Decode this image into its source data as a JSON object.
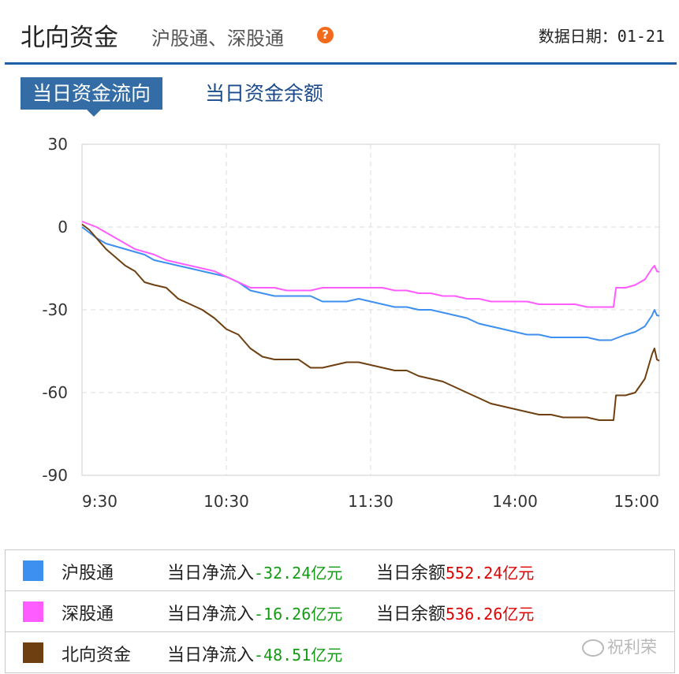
{
  "header": {
    "title": "北向资金",
    "subtitle": "沪股通、深股通",
    "help_icon": "question-icon",
    "date_label": "数据日期：",
    "date_value": "01-21",
    "accent_color": "#1f5fa5"
  },
  "tabs": [
    {
      "label": "当日资金流向",
      "active": true
    },
    {
      "label": "当日资金余额",
      "active": false
    }
  ],
  "chart_data": {
    "type": "line",
    "title": "",
    "xlabel": "",
    "ylabel": "",
    "ylim": [
      -90,
      30
    ],
    "yticks": [
      30,
      0,
      -30,
      -60,
      -90
    ],
    "xticks": [
      "9:30",
      "10:30",
      "11:30",
      "14:00",
      "15:00"
    ],
    "x_unit": "trading minutes from 9:30 (0 = 9:30, 60 = 10:30, 120 = 11:30/13:00, 180 = 14:00, 240 = 15:00)",
    "grid": true,
    "legend_placement": "below",
    "series": [
      {
        "name": "沪股通",
        "color": "#3d8ff0",
        "points": [
          [
            0,
            0
          ],
          [
            3,
            -2
          ],
          [
            6,
            -4
          ],
          [
            10,
            -6
          ],
          [
            14,
            -7
          ],
          [
            18,
            -8
          ],
          [
            22,
            -9
          ],
          [
            26,
            -10
          ],
          [
            30,
            -12
          ],
          [
            35,
            -13
          ],
          [
            40,
            -14
          ],
          [
            45,
            -15
          ],
          [
            50,
            -16
          ],
          [
            55,
            -17
          ],
          [
            60,
            -18
          ],
          [
            65,
            -20
          ],
          [
            70,
            -23
          ],
          [
            75,
            -24
          ],
          [
            80,
            -25
          ],
          [
            85,
            -25
          ],
          [
            90,
            -25
          ],
          [
            95,
            -25
          ],
          [
            100,
            -27
          ],
          [
            105,
            -27
          ],
          [
            110,
            -27
          ],
          [
            115,
            -26
          ],
          [
            120,
            -27
          ],
          [
            125,
            -28
          ],
          [
            130,
            -29
          ],
          [
            135,
            -29
          ],
          [
            140,
            -30
          ],
          [
            145,
            -30
          ],
          [
            150,
            -31
          ],
          [
            155,
            -32
          ],
          [
            160,
            -33
          ],
          [
            165,
            -35
          ],
          [
            170,
            -36
          ],
          [
            175,
            -37
          ],
          [
            180,
            -38
          ],
          [
            185,
            -39
          ],
          [
            190,
            -39
          ],
          [
            195,
            -40
          ],
          [
            200,
            -40
          ],
          [
            205,
            -40
          ],
          [
            210,
            -40
          ],
          [
            215,
            -41
          ],
          [
            220,
            -41
          ],
          [
            223,
            -40
          ],
          [
            226,
            -39
          ],
          [
            230,
            -38
          ],
          [
            234,
            -36
          ],
          [
            237,
            -32
          ],
          [
            238,
            -30
          ],
          [
            239,
            -32
          ],
          [
            240,
            -32.2
          ]
        ]
      },
      {
        "name": "深股通",
        "color": "#ff5cff",
        "points": [
          [
            0,
            2
          ],
          [
            3,
            1
          ],
          [
            6,
            0
          ],
          [
            10,
            -2
          ],
          [
            14,
            -4
          ],
          [
            18,
            -6
          ],
          [
            22,
            -8
          ],
          [
            26,
            -9
          ],
          [
            30,
            -10
          ],
          [
            35,
            -12
          ],
          [
            40,
            -13
          ],
          [
            45,
            -14
          ],
          [
            50,
            -15
          ],
          [
            55,
            -16
          ],
          [
            60,
            -18
          ],
          [
            65,
            -20
          ],
          [
            70,
            -22
          ],
          [
            75,
            -22
          ],
          [
            80,
            -22
          ],
          [
            85,
            -23
          ],
          [
            90,
            -23
          ],
          [
            95,
            -23
          ],
          [
            100,
            -22
          ],
          [
            105,
            -22
          ],
          [
            110,
            -22
          ],
          [
            115,
            -22
          ],
          [
            120,
            -22
          ],
          [
            125,
            -22
          ],
          [
            130,
            -23
          ],
          [
            135,
            -23
          ],
          [
            140,
            -24
          ],
          [
            145,
            -24
          ],
          [
            150,
            -25
          ],
          [
            155,
            -25
          ],
          [
            160,
            -26
          ],
          [
            165,
            -26
          ],
          [
            170,
            -27
          ],
          [
            175,
            -27
          ],
          [
            180,
            -27
          ],
          [
            185,
            -27
          ],
          [
            190,
            -28
          ],
          [
            195,
            -28
          ],
          [
            200,
            -28
          ],
          [
            205,
            -28
          ],
          [
            210,
            -29
          ],
          [
            215,
            -29
          ],
          [
            221,
            -29
          ],
          [
            222,
            -22
          ],
          [
            226,
            -22
          ],
          [
            230,
            -21
          ],
          [
            234,
            -19
          ],
          [
            237,
            -15
          ],
          [
            238,
            -14
          ],
          [
            239,
            -16
          ],
          [
            240,
            -16.3
          ]
        ]
      },
      {
        "name": "北向资金",
        "color": "#6e4011",
        "points": [
          [
            0,
            1
          ],
          [
            3,
            -1
          ],
          [
            6,
            -4
          ],
          [
            10,
            -8
          ],
          [
            14,
            -11
          ],
          [
            18,
            -14
          ],
          [
            22,
            -16
          ],
          [
            26,
            -20
          ],
          [
            30,
            -21
          ],
          [
            35,
            -22
          ],
          [
            40,
            -26
          ],
          [
            45,
            -28
          ],
          [
            50,
            -30
          ],
          [
            55,
            -33
          ],
          [
            60,
            -37
          ],
          [
            65,
            -39
          ],
          [
            70,
            -44
          ],
          [
            75,
            -47
          ],
          [
            80,
            -48
          ],
          [
            85,
            -48
          ],
          [
            90,
            -48
          ],
          [
            95,
            -51
          ],
          [
            100,
            -51
          ],
          [
            105,
            -50
          ],
          [
            110,
            -49
          ],
          [
            115,
            -49
          ],
          [
            120,
            -50
          ],
          [
            125,
            -51
          ],
          [
            130,
            -52
          ],
          [
            135,
            -52
          ],
          [
            140,
            -54
          ],
          [
            145,
            -55
          ],
          [
            150,
            -56
          ],
          [
            155,
            -58
          ],
          [
            160,
            -60
          ],
          [
            165,
            -62
          ],
          [
            170,
            -64
          ],
          [
            175,
            -65
          ],
          [
            180,
            -66
          ],
          [
            185,
            -67
          ],
          [
            190,
            -68
          ],
          [
            195,
            -68
          ],
          [
            200,
            -69
          ],
          [
            205,
            -69
          ],
          [
            210,
            -69
          ],
          [
            215,
            -70
          ],
          [
            221,
            -70
          ],
          [
            222,
            -61
          ],
          [
            226,
            -61
          ],
          [
            230,
            -60
          ],
          [
            234,
            -55
          ],
          [
            237,
            -46
          ],
          [
            238,
            -44
          ],
          [
            239,
            -48
          ],
          [
            240,
            -48.5
          ]
        ]
      }
    ]
  },
  "legend": [
    {
      "name": "沪股通",
      "color": "#3d8ff0",
      "inflow_label": "当日净流入",
      "inflow_value": "-32.24亿元",
      "balance_label": "当日余额",
      "balance_value": "552.24亿元"
    },
    {
      "name": "深股通",
      "color": "#ff5cff",
      "inflow_label": "当日净流入",
      "inflow_value": "-16.26亿元",
      "balance_label": "当日余额",
      "balance_value": "536.26亿元"
    },
    {
      "name": "北向资金",
      "color": "#6e4011",
      "inflow_label": "当日净流入",
      "inflow_value": "-48.51亿元"
    }
  ],
  "watermark": {
    "text": "祝利荣",
    "icon": "wechat-icon"
  }
}
